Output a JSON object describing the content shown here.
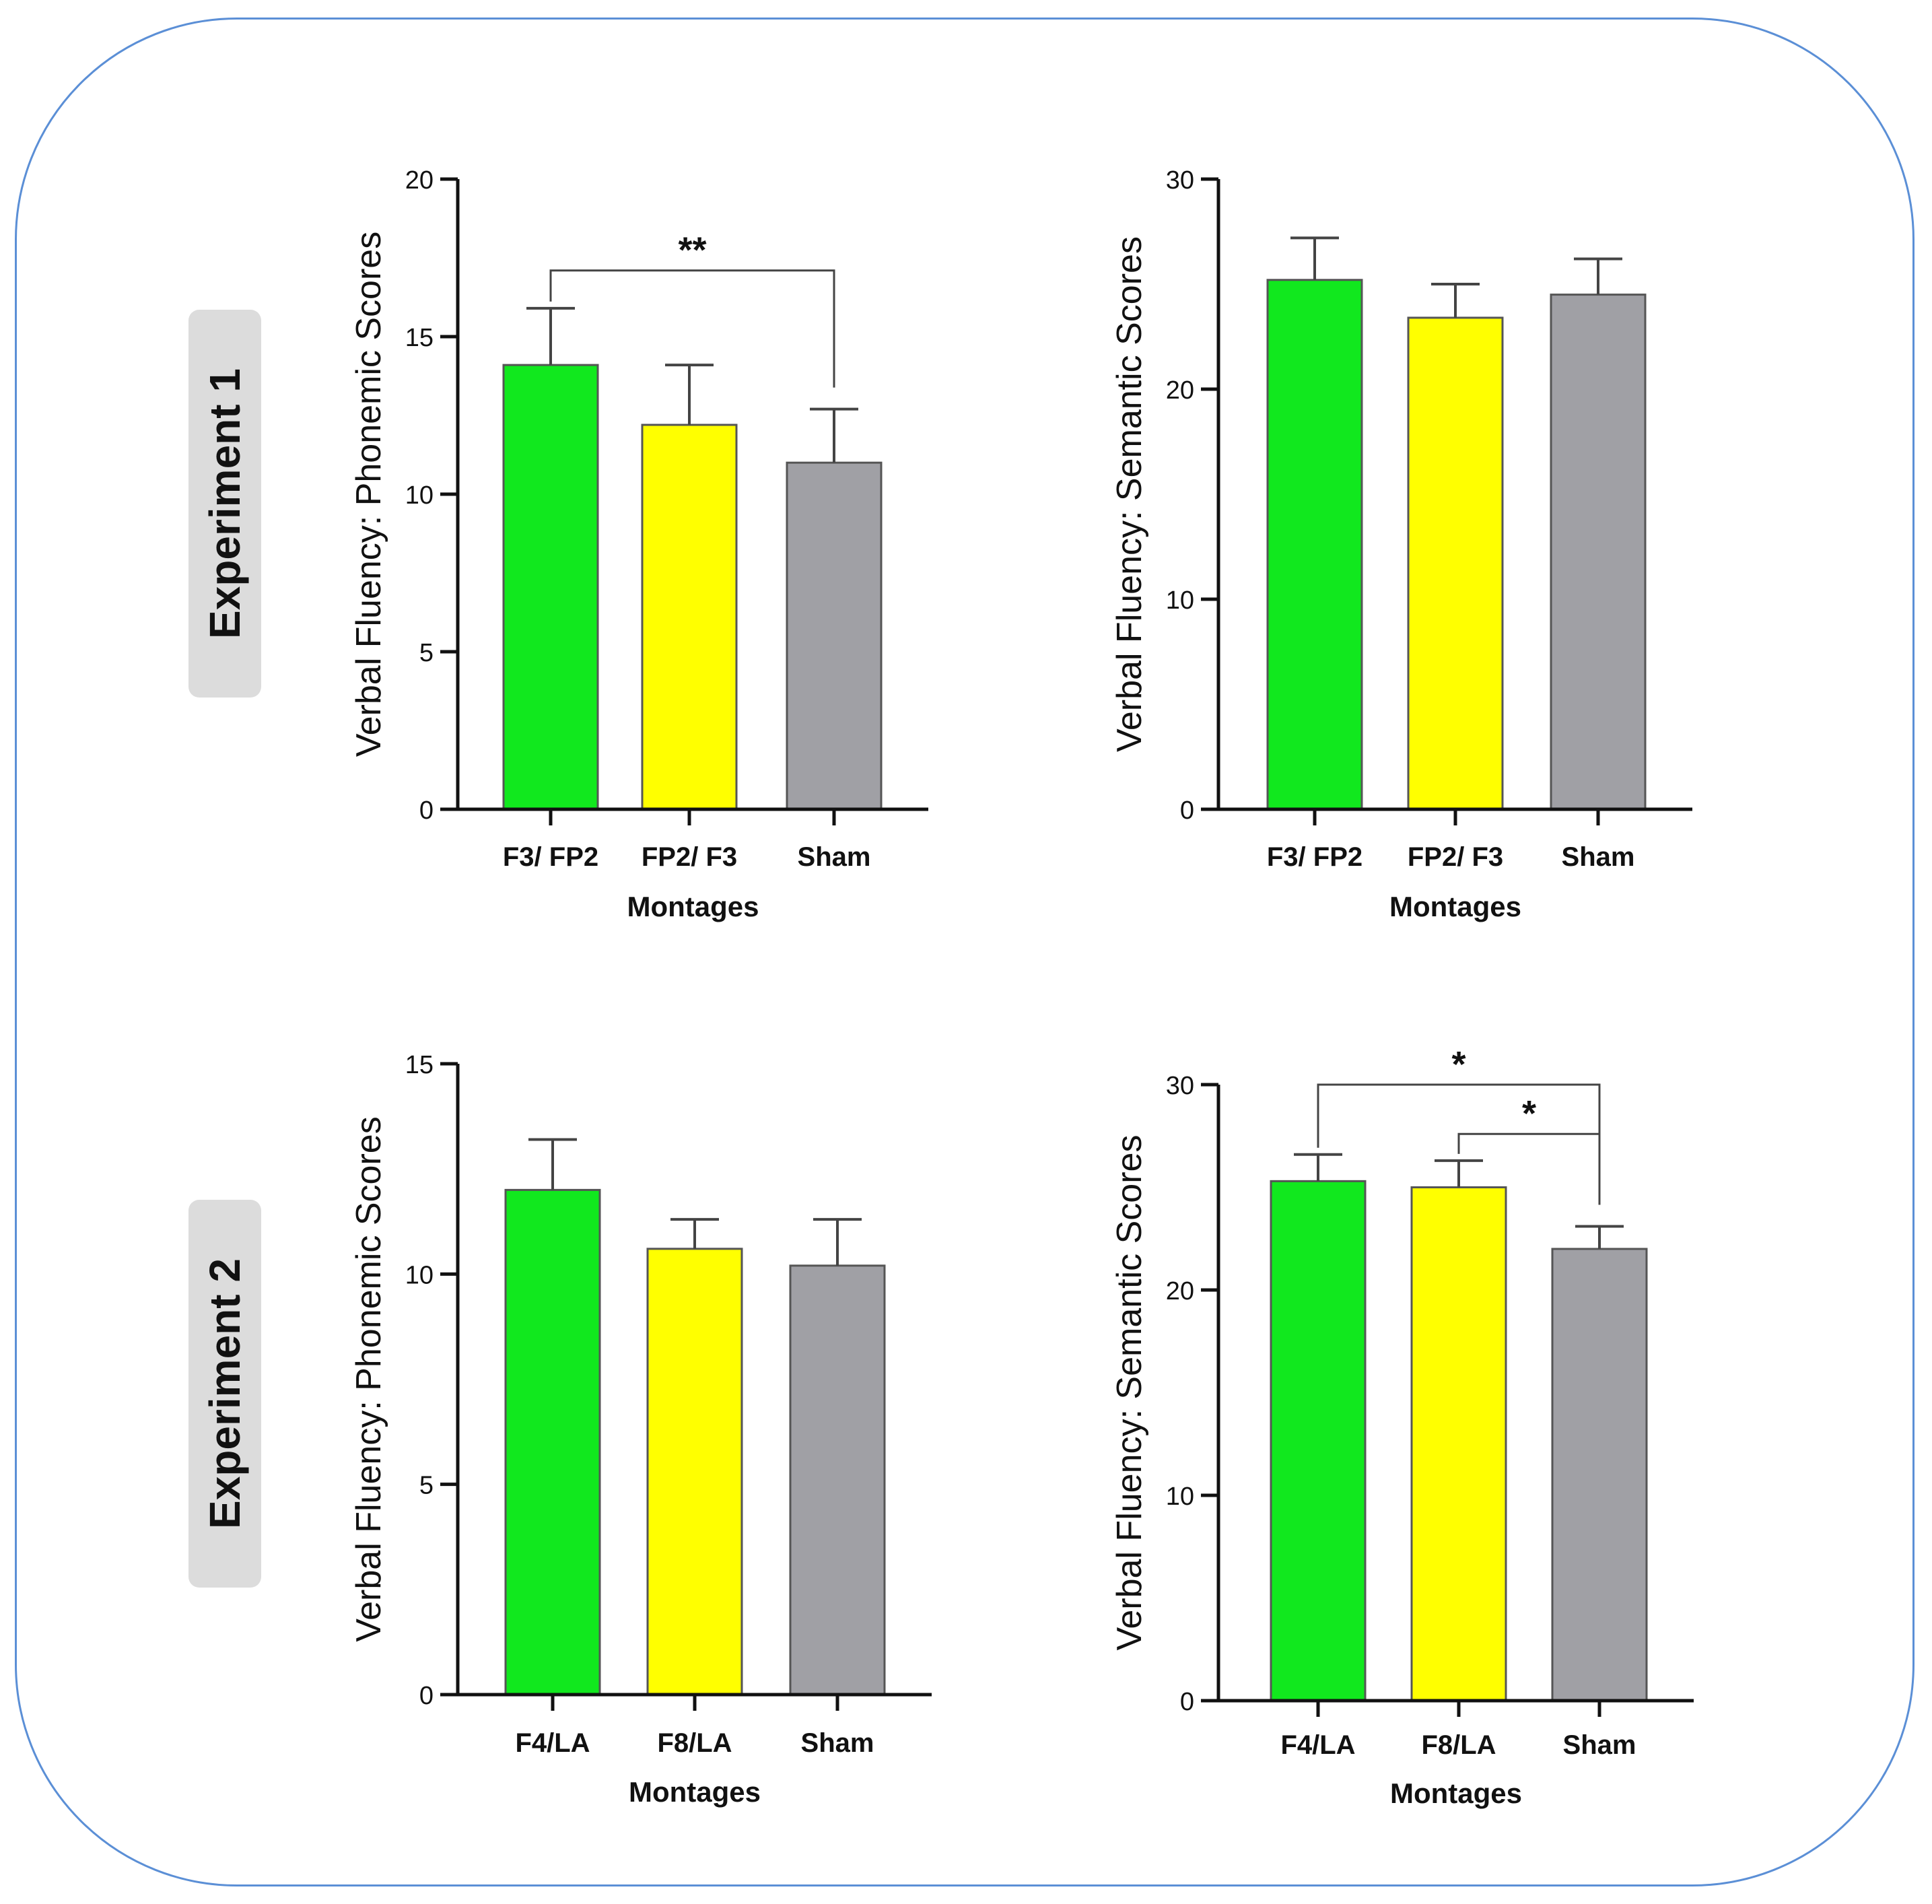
{
  "experiments": [
    {
      "label": "Experiment 1"
    },
    {
      "label": "Experiment 2"
    }
  ],
  "colors": {
    "green": "#11e81e",
    "yellow": "#ffff00",
    "gray": "#a0a0a5",
    "frame": "#5b8fd6"
  },
  "chart_data": [
    {
      "id": "exp1-phonemic",
      "type": "bar",
      "ylabel": "Verbal Fluency: Phonemic Scores",
      "xlabel": "Montages",
      "categories": [
        "F3/ FP2",
        "FP2/ F3",
        "Sham"
      ],
      "values": [
        14.1,
        12.2,
        11.0
      ],
      "errors": [
        1.8,
        1.9,
        1.7
      ],
      "colors": [
        "#11e81e",
        "#ffff00",
        "#a0a0a5"
      ],
      "ylim": [
        0,
        20
      ],
      "yticks": [
        0,
        5,
        10,
        15,
        20
      ],
      "significance": [
        {
          "from": 0,
          "to": 2,
          "label": "**",
          "level": 17.1
        }
      ]
    },
    {
      "id": "exp1-semantic",
      "type": "bar",
      "ylabel": "Verbal Fluency: Semantic Scores",
      "xlabel": "Montages",
      "categories": [
        "F3/ FP2",
        "FP2/ F3",
        "Sham"
      ],
      "values": [
        25.2,
        23.4,
        24.5
      ],
      "errors": [
        2.0,
        1.6,
        1.7
      ],
      "colors": [
        "#11e81e",
        "#ffff00",
        "#a0a0a5"
      ],
      "ylim": [
        0,
        30
      ],
      "yticks": [
        0,
        10,
        20,
        30
      ],
      "significance": []
    },
    {
      "id": "exp2-phonemic",
      "type": "bar",
      "ylabel": "Verbal Fluency: Phonemic Scores",
      "xlabel": "Montages",
      "categories": [
        "F4/LA",
        "F8/LA",
        "Sham"
      ],
      "values": [
        12.0,
        10.6,
        10.2
      ],
      "errors": [
        1.2,
        0.7,
        1.1
      ],
      "colors": [
        "#11e81e",
        "#ffff00",
        "#a0a0a5"
      ],
      "ylim": [
        0,
        15
      ],
      "yticks": [
        0,
        5,
        10,
        15
      ],
      "significance": []
    },
    {
      "id": "exp2-semantic",
      "type": "bar",
      "ylabel": "Verbal Fluency: Semantic Scores",
      "xlabel": "Montages",
      "categories": [
        "F4/LA",
        "F8/LA",
        "Sham"
      ],
      "values": [
        25.3,
        25.0,
        22.0
      ],
      "errors": [
        1.3,
        1.3,
        1.1
      ],
      "colors": [
        "#11e81e",
        "#ffff00",
        "#a0a0a5"
      ],
      "ylim": [
        0,
        30
      ],
      "yticks": [
        0,
        10,
        20,
        30
      ],
      "significance": [
        {
          "from": 0,
          "to": 2,
          "label": "*",
          "level": 30.0
        },
        {
          "from": 1,
          "to": 2,
          "label": "*",
          "level": 27.6
        }
      ]
    }
  ]
}
